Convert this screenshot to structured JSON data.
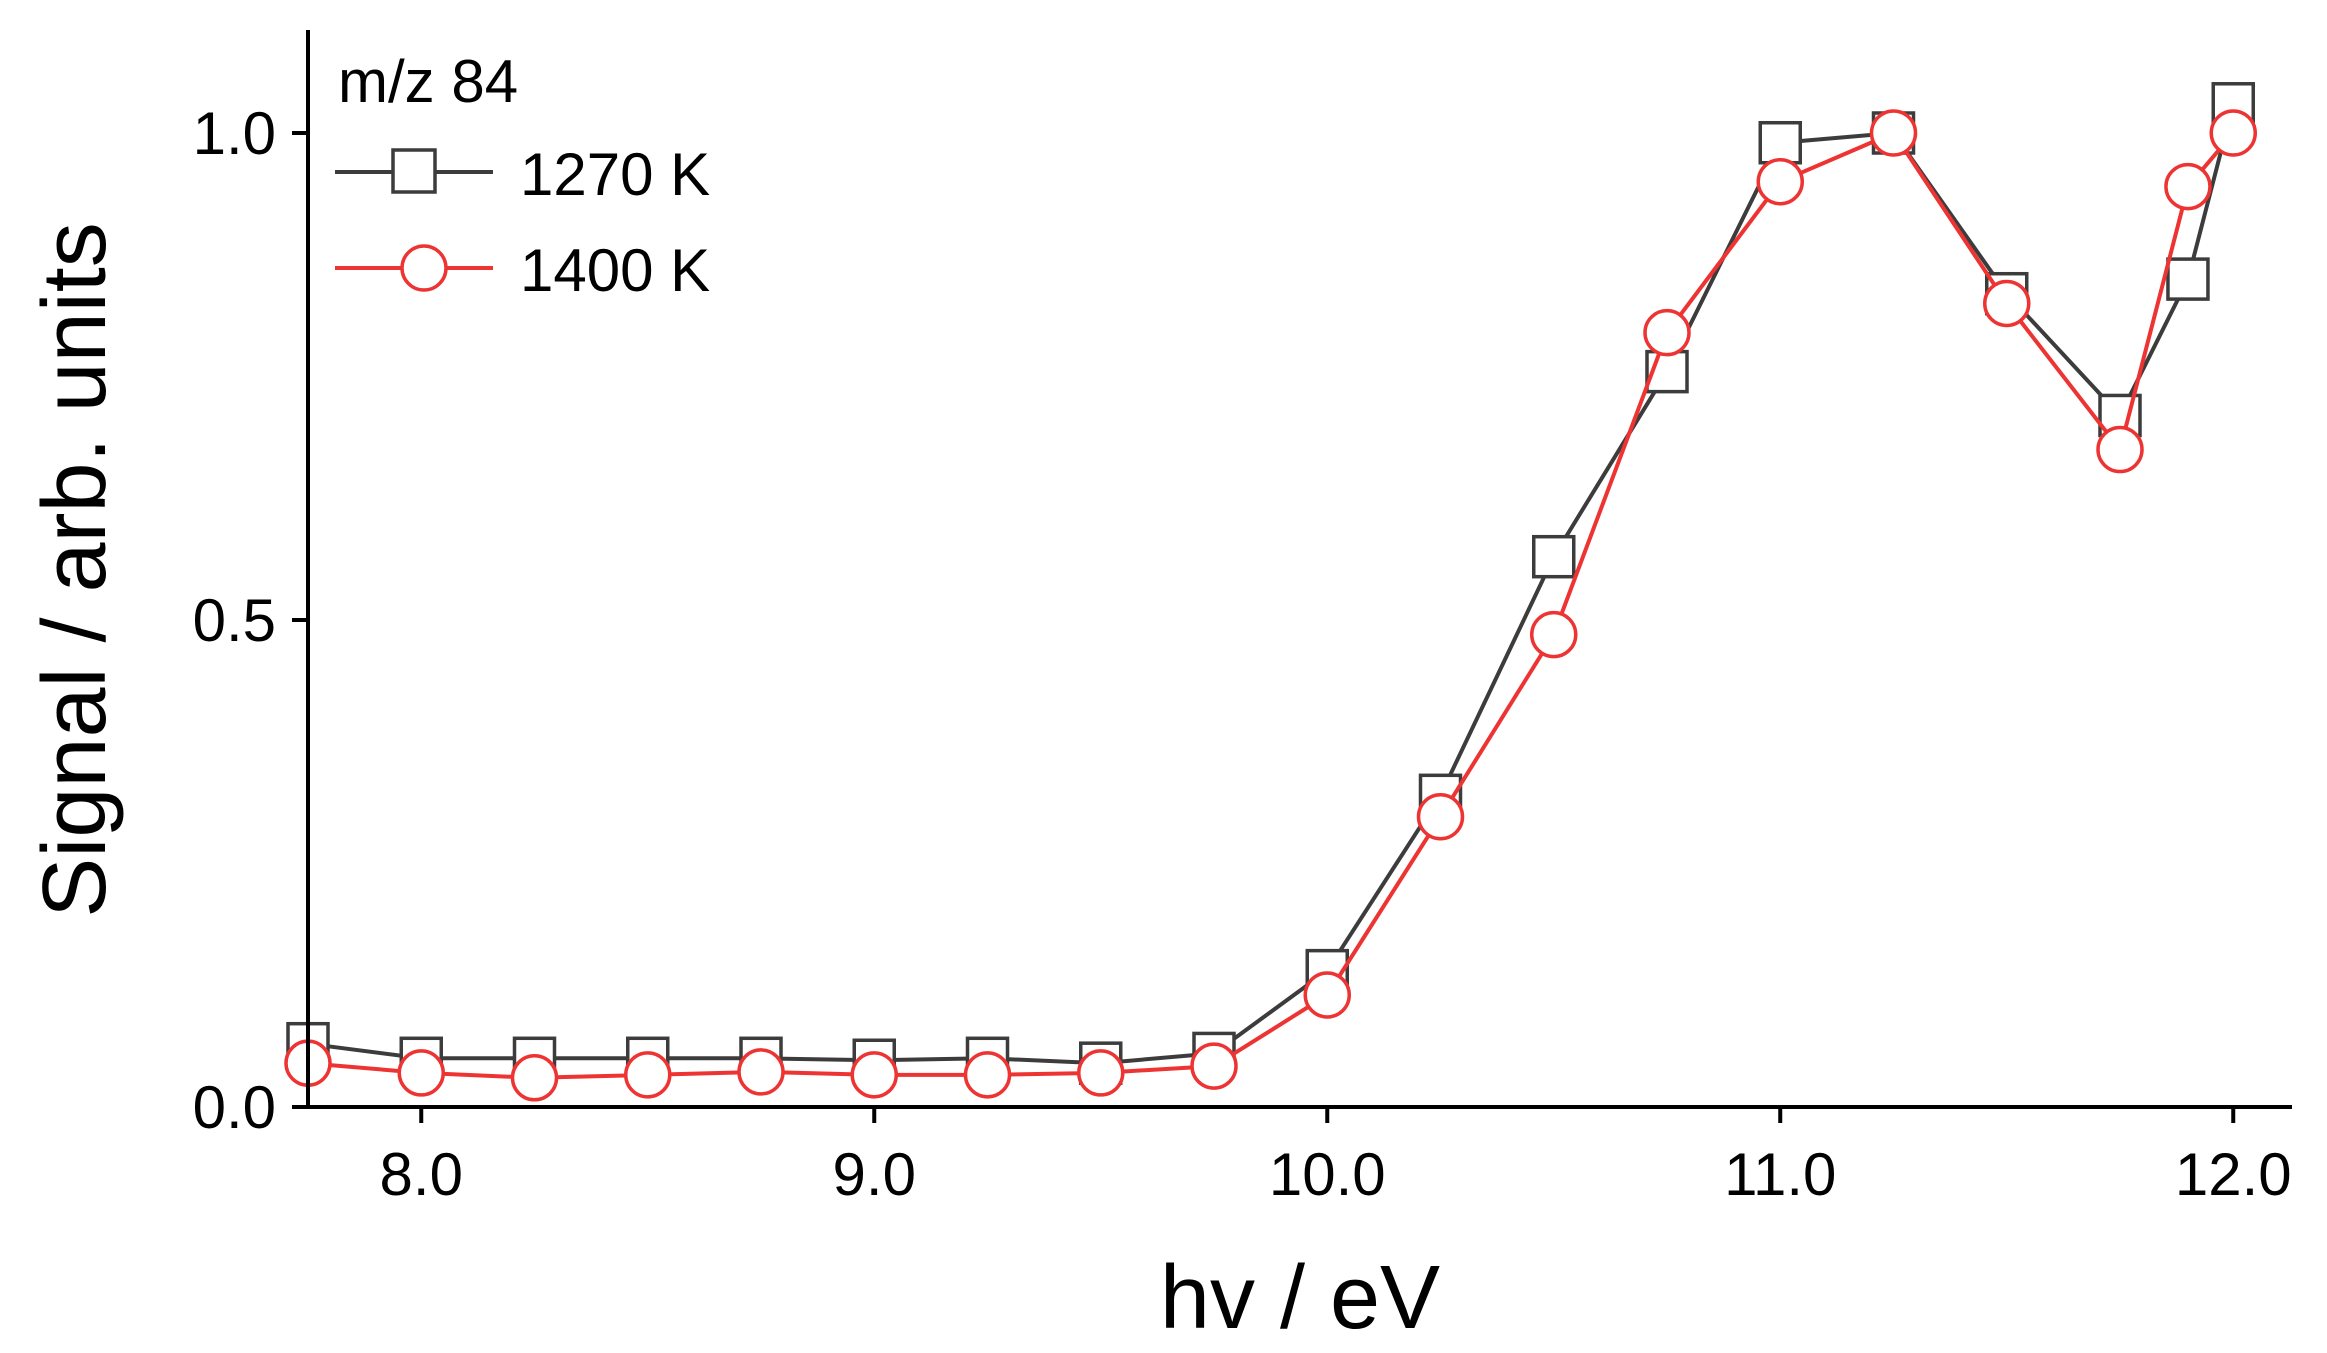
{
  "chart_data": {
    "type": "line",
    "title": "",
    "annotation": "m/z 84",
    "xlabel": "hv / eV",
    "ylabel": "Signal / arb. units",
    "xlim": [
      7.75,
      12.1
    ],
    "ylim": [
      0.0,
      1.1
    ],
    "xticks": [
      8.0,
      9.0,
      10.0,
      11.0,
      12.0
    ],
    "xtick_labels": [
      "8.0",
      "9.0",
      "10.0",
      "11.0",
      "12.0"
    ],
    "yticks": [
      0.0,
      0.5,
      1.0
    ],
    "ytick_labels": [
      "0.0",
      "0.5",
      "1.0"
    ],
    "grid": false,
    "legend_position": "top-left",
    "series": [
      {
        "name": "1270 K",
        "marker": "square",
        "color": "#3c3c3c",
        "x": [
          7.75,
          8.0,
          8.25,
          8.5,
          8.75,
          9.0,
          9.25,
          9.5,
          9.75,
          10.0,
          10.25,
          10.5,
          10.75,
          11.0,
          11.25,
          11.5,
          11.75,
          11.9,
          12.0
        ],
        "y": [
          0.065,
          0.05,
          0.05,
          0.05,
          0.05,
          0.048,
          0.05,
          0.045,
          0.055,
          0.14,
          0.32,
          0.565,
          0.755,
          0.99,
          1.0,
          0.835,
          0.71,
          0.85,
          1.03
        ]
      },
      {
        "name": "1400 K",
        "marker": "circle",
        "color": "#ee3333",
        "x": [
          7.75,
          8.0,
          8.25,
          8.5,
          8.75,
          9.0,
          9.25,
          9.5,
          9.75,
          10.0,
          10.25,
          10.5,
          10.75,
          11.0,
          11.25,
          11.5,
          11.75,
          11.9,
          12.0
        ],
        "y": [
          0.045,
          0.035,
          0.03,
          0.033,
          0.036,
          0.033,
          0.033,
          0.035,
          0.042,
          0.115,
          0.298,
          0.485,
          0.795,
          0.95,
          1.0,
          0.825,
          0.675,
          0.945,
          1.0
        ]
      }
    ]
  }
}
